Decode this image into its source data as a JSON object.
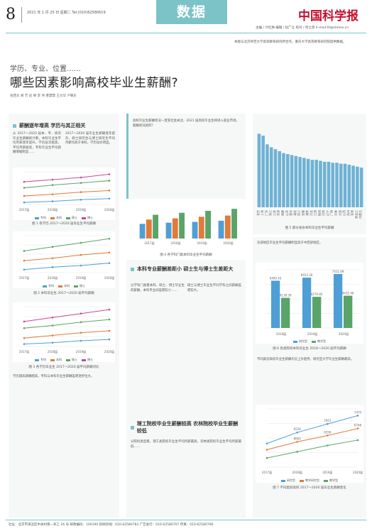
{
  "header": {
    "page_number": "8",
    "date_line": "2021 年 1 月 25 日  星期二  Tel:(010)62580619",
    "section": "数据",
    "masthead": "中国科学报",
    "masthead_sub": "主编 / 计红梅  编辑 / 赵广立  校对 / 何之彦  E-mail:hf@stimes.cn"
  },
  "source_note": "本版与北京师范大学高等教育研究所合作，重庆大学高等教育研究院提供数据。",
  "article": {
    "kicker": "学历、专业、位置……",
    "title": "哪些因素影响高校毕业生薪酬?",
    "byline": "张西文 胡 芳 赵 婷 李 伟 曹慧慧 王文华 卢朝东"
  },
  "left_panel": {
    "heading": "薪酬逐年增高 学历与其正相关",
    "text_a": "从 2017～2020 届本、专、研究毕业生薪酬统计看，本科毕业生平均月薪逐年提升，学历层次越高，平均月薪越高，专科毕业生平均薪酬增幅明显……",
    "text_b": "2017～2020 届毕业生薪酬逐年提升，硕士研究生与博士研究生平均月薪均高于本科，学历溢价明显。",
    "chart1_caption": "图 1 各学历 2017～2020 届毕业生平均薪酬",
    "chart2_caption": "图 2 本科毕业生 2017～2020 届平均薪酬",
    "chart3_caption": "图 3 各学历毕业生 2017～2020 届平均薪酬对比",
    "text_c": "学历越高薪酬越高，专科与本科毕业生薪酬差距逐步拉大。",
    "legend": [
      "专科",
      "本科",
      "硕士",
      "博士"
    ]
  },
  "mid_panel_top": {
    "text": "高校毕业生薪酬状况一直受社会关注，2021 届高校毕业生将进入就业市场，薪酬状况如何？"
  },
  "mid_panel": {
    "chart_caption": "图 4 各学科门类本科毕业生平均薪酬",
    "heading": "本科专业薪酬差距小 硕士生与博士生差距大",
    "text_a": "分学科门类看本科、硕士、博士毕业生的薪酬，本科专业间差距较小……",
    "text_b": "硕士与博士毕业生不同学科之间薪酬差距较大。",
    "heading2": "理工院校毕业生薪酬较高 农林院校毕业生薪酬较低",
    "text_c": "分院校类型看，理工类院校毕业生平均月薪最高，农林类院校毕业生平均月薪最低……"
  },
  "right_panel_top": {
    "chart_caption": "图 5 部分省份本科毕业生平均薪酬"
  },
  "right_panel": {
    "text_a": "东部地区毕业生平均薪酬明显高于中西部地区。",
    "chart_caption": "图 6 各类院校本科毕业生 2018～2020 届平均薪酬",
    "chart2_caption": "图 7 不同类别高校 2017～2020 届毕业生薪酬变化",
    "text_b": "不同类别高校毕业生薪酬均呈上升趋势，研究型大学毕业生薪酬最高。"
  },
  "chart_data": [
    {
      "type": "line",
      "title": "图 1 各学历 2017～2020 届毕业生平均薪酬",
      "categories": [
        "2017届",
        "2018届",
        "2019届",
        "2020届"
      ],
      "series": [
        {
          "name": "专科",
          "values": [
            3800,
            4000,
            4300,
            4500
          ]
        },
        {
          "name": "本科",
          "values": [
            5000,
            5300,
            5700,
            6000
          ]
        },
        {
          "name": "硕士",
          "values": [
            6500,
            7000,
            7400,
            7800
          ]
        },
        {
          "name": "博士",
          "values": [
            7600,
            8000,
            8400,
            9000
          ]
        }
      ]
    },
    {
      "type": "line",
      "title": "图 2",
      "categories": [
        "2017届",
        "2018届",
        "2019届",
        "2020届"
      ],
      "series": [
        {
          "name": "专科",
          "values": [
            3700,
            4000,
            4200,
            4500
          ]
        },
        {
          "name": "本科",
          "values": [
            4800,
            5100,
            5500,
            5800
          ]
        },
        {
          "name": "硕士",
          "values": [
            6000,
            6500,
            7000,
            7500
          ]
        }
      ]
    },
    {
      "type": "line",
      "title": "图 3",
      "categories": [
        "2017届",
        "2018届",
        "2019届",
        "2020届"
      ],
      "series": [
        {
          "name": "专科",
          "values": [
            3600,
            3800,
            4100,
            4300
          ]
        },
        {
          "name": "本科",
          "values": [
            4500,
            4900,
            5300,
            5600
          ]
        },
        {
          "name": "硕士",
          "values": [
            6000,
            6400,
            6900,
            7300
          ]
        },
        {
          "name": "博士",
          "values": [
            7000,
            7600,
            8200,
            8800
          ]
        }
      ]
    },
    {
      "type": "bar",
      "title": "图 5",
      "categories": [
        "北京",
        "上海",
        "广东",
        "浙江",
        "江苏",
        "天津",
        "福建",
        "山东",
        "重庆",
        "湖北",
        "四川",
        "安徽",
        "湖南",
        "河北",
        "江西",
        "陕西",
        "河南",
        "辽宁",
        "广西",
        "吉林",
        "云南",
        "山西",
        "贵州",
        "甘肃",
        "黑龙江",
        "内蒙古"
      ],
      "values": [
        7600,
        7400,
        6500,
        6200,
        6000,
        5800,
        5600,
        5500,
        5400,
        5300,
        5200,
        5100,
        5000,
        4900,
        4900,
        4800,
        4700,
        4700,
        4600,
        4600,
        4500,
        4500,
        4400,
        4300,
        4200,
        4100
      ]
    },
    {
      "type": "bar",
      "title": "图 6",
      "categories": [
        "2018届",
        "2019届",
        "2020届"
      ],
      "series": [
        {
          "name": "研究型",
          "values": [
            6495,
            6913,
            7412
          ]
        },
        {
          "name": "教学型",
          "values": [
            4138,
            4280,
            4432
          ]
        }
      ],
      "data_labels": [
        "6495.43",
        "4138.30",
        "6913.30",
        "4279.82",
        "7411.69",
        "4432.46"
      ]
    },
    {
      "type": "line",
      "title": "图 7",
      "categories": [
        "2017届",
        "2018届",
        "2019届",
        "2020届"
      ],
      "series": [
        {
          "name": "研究型",
          "values": [
            5908,
            6526,
            7001,
            7470
          ]
        },
        {
          "name": "教学研究型",
          "values": [
            5562,
            6002,
            6356,
            6748
          ]
        },
        {
          "name": "教学型",
          "values": [
            5100,
            5450,
            5800,
            6100
          ]
        }
      ],
      "data_labels": [
        "6526",
        "7001",
        "7470",
        "6002",
        "6356",
        "6748"
      ]
    }
  ],
  "footer": "社址：北京市海淀区中关村南一条乙 16 号  邮政编码：100190  新闻热线：010-62580783  广告发行：010-62580707  传真：010-62580706"
}
